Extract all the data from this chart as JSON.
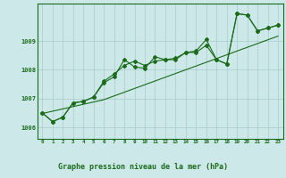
{
  "hours": [
    0,
    1,
    2,
    3,
    4,
    5,
    6,
    7,
    8,
    9,
    10,
    11,
    12,
    13,
    14,
    15,
    16,
    17,
    18,
    19,
    20,
    21,
    22,
    23
  ],
  "x_labels": [
    "0",
    "1",
    "2",
    "3",
    "4",
    "5",
    "6",
    "7",
    "8",
    "9",
    "10",
    "11",
    "12",
    "13",
    "14",
    "15",
    "16",
    "17",
    "18",
    "19",
    "20",
    "21",
    "22",
    "23"
  ],
  "line_main": [
    1006.5,
    1006.2,
    1006.35,
    1006.85,
    1006.9,
    1007.05,
    1007.55,
    1007.75,
    1008.35,
    1008.1,
    1008.05,
    1008.45,
    1008.35,
    1008.35,
    1008.6,
    1008.6,
    1008.85,
    1008.35,
    1008.2,
    1009.95,
    1009.9,
    1009.35,
    1009.45,
    1009.55
  ],
  "line_alt": [
    1006.5,
    1006.2,
    1006.35,
    1006.85,
    1006.9,
    1007.05,
    1007.6,
    1007.85,
    1008.15,
    1008.3,
    1008.15,
    1008.3,
    1008.35,
    1008.4,
    1008.6,
    1008.65,
    1009.05,
    1008.35,
    1008.2,
    1009.95,
    1009.9,
    1009.35,
    1009.45,
    1009.55
  ],
  "line_trend": [
    1006.48,
    1006.56,
    1006.64,
    1006.72,
    1006.8,
    1006.88,
    1006.96,
    1007.09,
    1007.22,
    1007.35,
    1007.48,
    1007.61,
    1007.74,
    1007.87,
    1008.0,
    1008.13,
    1008.26,
    1008.39,
    1008.52,
    1008.65,
    1008.78,
    1008.91,
    1009.04,
    1009.17
  ],
  "ylim": [
    1005.6,
    1010.3
  ],
  "yticks": [
    1006,
    1007,
    1008,
    1009
  ],
  "line_color": "#1a6b1a",
  "bg_color": "#cce8e8",
  "grid_color": "#aacccc",
  "title": "Graphe pression niveau de la mer (hPa)",
  "title_color": "#1a6b1a",
  "label_bg": "#7ab87a"
}
